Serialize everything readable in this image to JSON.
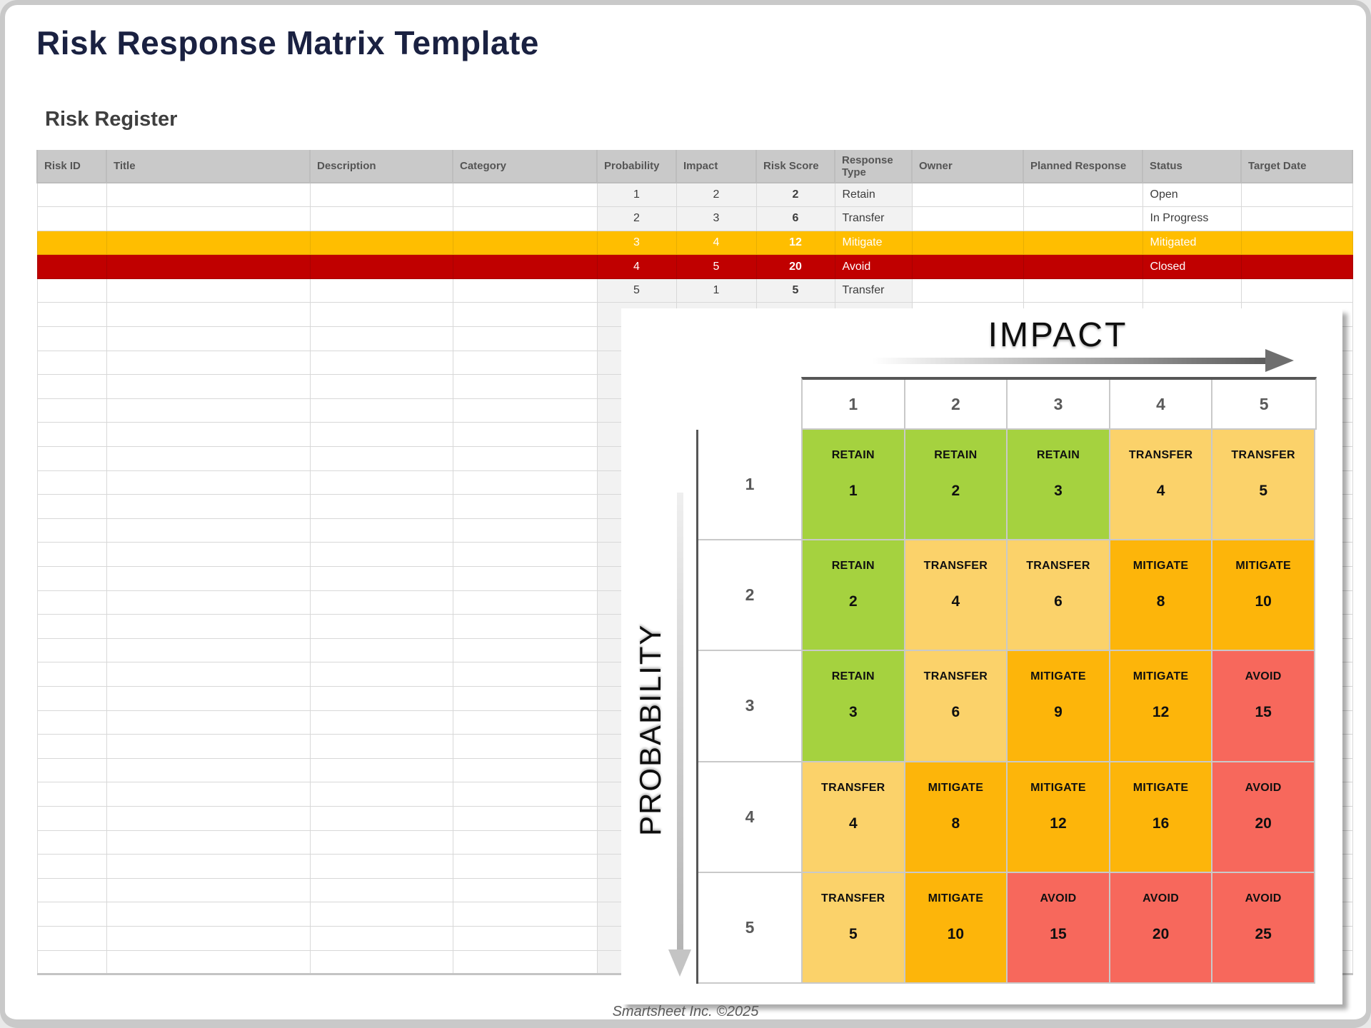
{
  "page": {
    "title": "Risk Response Matrix Template",
    "section_title": "Risk Register",
    "footer": "Smartsheet Inc. ©2025"
  },
  "register": {
    "columns": [
      "Risk ID",
      "Title",
      "Description",
      "Category",
      "Probability",
      "Impact",
      "Risk Score",
      "Response Type",
      "Owner",
      "Planned Response",
      "Status",
      "Target Date"
    ],
    "rows": [
      {
        "style": "default",
        "cells": [
          "",
          "",
          "",
          "",
          "1",
          "2",
          "2",
          "Retain",
          "",
          "",
          "Open",
          ""
        ]
      },
      {
        "style": "default",
        "cells": [
          "",
          "",
          "",
          "",
          "2",
          "3",
          "6",
          "Transfer",
          "",
          "",
          "In Progress",
          ""
        ]
      },
      {
        "style": "yellow",
        "cells": [
          "",
          "",
          "",
          "",
          "3",
          "4",
          "12",
          "Mitigate",
          "",
          "",
          "Mitigated",
          ""
        ]
      },
      {
        "style": "red",
        "cells": [
          "",
          "",
          "",
          "",
          "4",
          "5",
          "20",
          "Avoid",
          "",
          "",
          "Closed",
          ""
        ]
      },
      {
        "style": "default",
        "cells": [
          "",
          "",
          "",
          "",
          "5",
          "1",
          "5",
          "Transfer",
          "",
          "",
          "",
          ""
        ]
      }
    ],
    "empty_row_count": 28
  },
  "matrix": {
    "x_axis_label": "IMPACT",
    "y_axis_label": "PROBABILITY",
    "impact_levels": [
      "1",
      "2",
      "3",
      "4",
      "5"
    ],
    "level_colors": {
      "green": "#A5D23F",
      "amber": "#FBD26A",
      "orange": "#FDB50A",
      "red": "#F7685C"
    },
    "rows": [
      {
        "probability": "1",
        "cells": [
          {
            "label": "RETAIN",
            "score": "1",
            "level": "green"
          },
          {
            "label": "RETAIN",
            "score": "2",
            "level": "green"
          },
          {
            "label": "RETAIN",
            "score": "3",
            "level": "green"
          },
          {
            "label": "TRANSFER",
            "score": "4",
            "level": "amber"
          },
          {
            "label": "TRANSFER",
            "score": "5",
            "level": "amber"
          }
        ]
      },
      {
        "probability": "2",
        "cells": [
          {
            "label": "RETAIN",
            "score": "2",
            "level": "green"
          },
          {
            "label": "TRANSFER",
            "score": "4",
            "level": "amber"
          },
          {
            "label": "TRANSFER",
            "score": "6",
            "level": "amber"
          },
          {
            "label": "MITIGATE",
            "score": "8",
            "level": "orange"
          },
          {
            "label": "MITIGATE",
            "score": "10",
            "level": "orange"
          }
        ]
      },
      {
        "probability": "3",
        "cells": [
          {
            "label": "RETAIN",
            "score": "3",
            "level": "green"
          },
          {
            "label": "TRANSFER",
            "score": "6",
            "level": "amber"
          },
          {
            "label": "MITIGATE",
            "score": "9",
            "level": "orange"
          },
          {
            "label": "MITIGATE",
            "score": "12",
            "level": "orange"
          },
          {
            "label": "AVOID",
            "score": "15",
            "level": "red"
          }
        ]
      },
      {
        "probability": "4",
        "cells": [
          {
            "label": "TRANSFER",
            "score": "4",
            "level": "amber"
          },
          {
            "label": "MITIGATE",
            "score": "8",
            "level": "orange"
          },
          {
            "label": "MITIGATE",
            "score": "12",
            "level": "orange"
          },
          {
            "label": "MITIGATE",
            "score": "16",
            "level": "orange"
          },
          {
            "label": "AVOID",
            "score": "20",
            "level": "red"
          }
        ]
      },
      {
        "probability": "5",
        "cells": [
          {
            "label": "TRANSFER",
            "score": "5",
            "level": "amber"
          },
          {
            "label": "MITIGATE",
            "score": "10",
            "level": "orange"
          },
          {
            "label": "AVOID",
            "score": "15",
            "level": "red"
          },
          {
            "label": "AVOID",
            "score": "20",
            "level": "red"
          },
          {
            "label": "AVOID",
            "score": "25",
            "level": "red"
          }
        ]
      }
    ]
  },
  "colors": {
    "title_navy": "#1A2141",
    "header_gray": "#C9C9C9",
    "highlight_yellow": "#FFBE00",
    "highlight_red": "#C00000",
    "shaded_cell": "#F2F2F2"
  }
}
